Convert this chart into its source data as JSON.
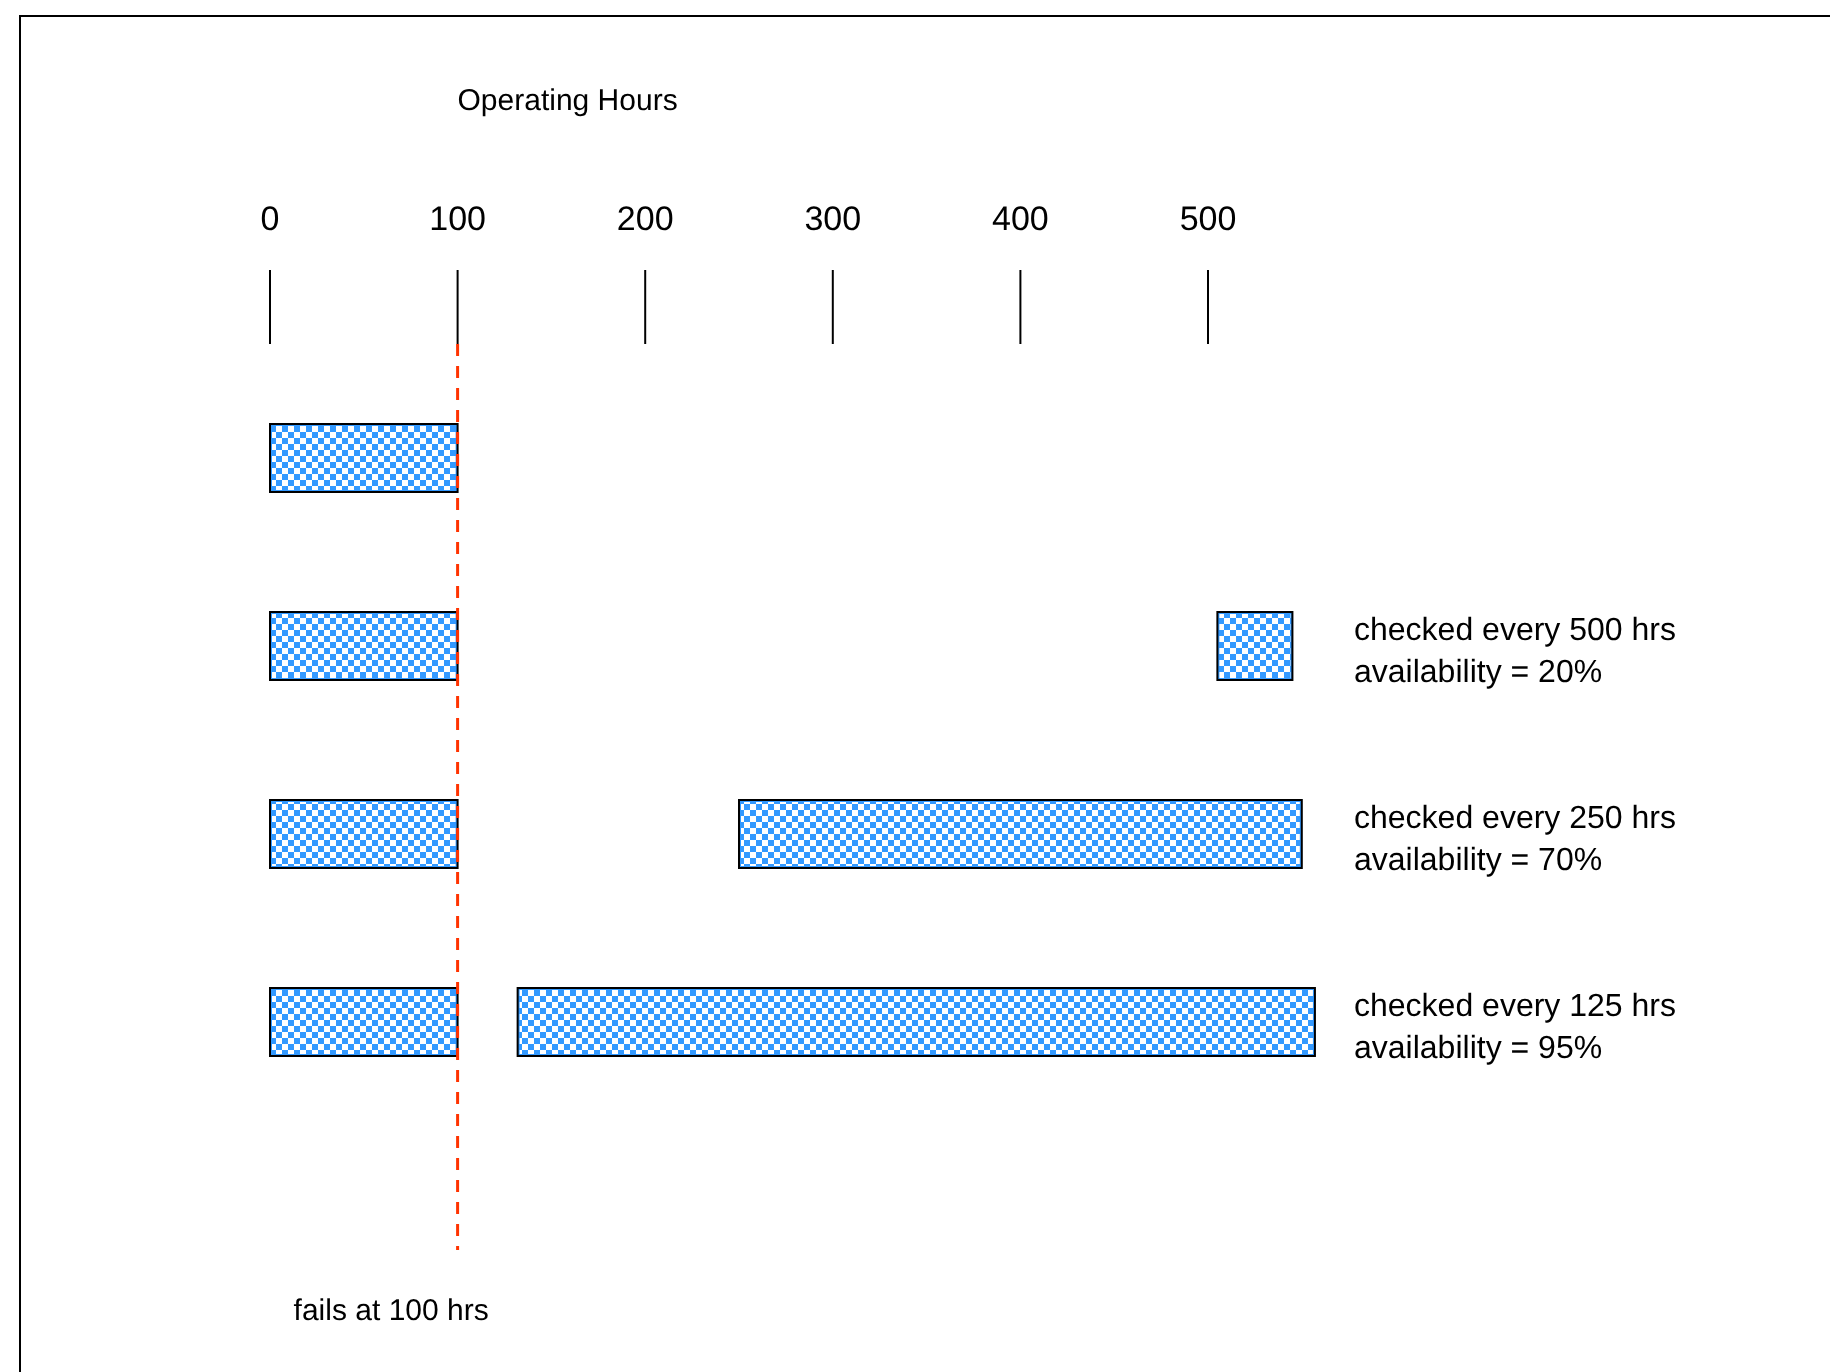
{
  "chart_data": {
    "type": "bar",
    "orientation": "horizontal",
    "xlabel": "Operating Hours",
    "categories": [
      null,
      null,
      null,
      null
    ],
    "series": [
      {
        "color": "#3399ff",
        "values": [
          100,
          100,
          100,
          100
        ],
        "base": [
          0,
          0,
          0,
          0
        ]
      },
      {
        "color": "#3399ff",
        "values": [
          null,
          40,
          300,
          425
        ],
        "base": [
          null,
          505,
          250,
          132
        ]
      }
    ],
    "xlim": [
      0,
      560
    ],
    "xticks": [
      0,
      100,
      200,
      300,
      400,
      500
    ],
    "ref_lines": [
      {
        "axis": "x",
        "value": 100,
        "label": "fails at 100 hrs",
        "color": "#ff3300",
        "line_style": "dashed"
      }
    ],
    "annotations": [
      "checked every 500 hrs\navailability = 20%",
      "checked every 250 hrs\navailability = 70%",
      "checked every 125 hrs\navailability = 95%"
    ]
  }
}
